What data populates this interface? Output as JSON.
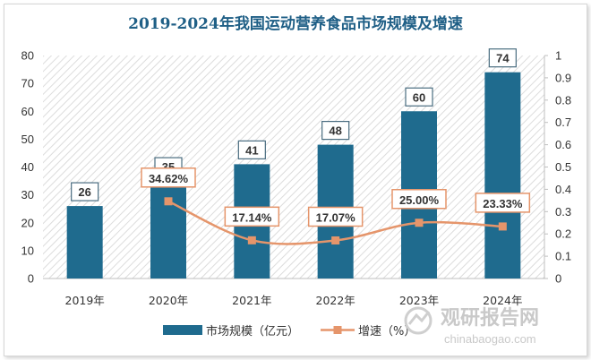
{
  "chart_data": {
    "type": "bar",
    "title": "2019-2024年我国运动营养食品市场规模及增速",
    "categories": [
      "2019年",
      "2020年",
      "2021年",
      "2022年",
      "2023年",
      "2024年"
    ],
    "series": [
      {
        "name": "市场规模（亿元）",
        "type": "bar",
        "axis": "left",
        "values": [
          26,
          35,
          41,
          48,
          60,
          74
        ],
        "labels": [
          "26",
          "35",
          "41",
          "48",
          "60",
          "74"
        ],
        "color": "#1f6b8e"
      },
      {
        "name": "增速（%）",
        "type": "line",
        "axis": "right",
        "values": [
          null,
          0.3462,
          0.1714,
          0.1707,
          0.25,
          0.2333
        ],
        "labels": [
          "",
          "34.62%",
          "17.14%",
          "17.07%",
          "25.00%",
          "23.33%"
        ],
        "color": "#e5956b"
      }
    ],
    "y_left": {
      "min": 0,
      "max": 80,
      "ticks": [
        "0",
        "10",
        "20",
        "30",
        "40",
        "50",
        "60",
        "70",
        "80"
      ]
    },
    "y_right": {
      "min": 0,
      "max": 1,
      "ticks": [
        "0",
        "0.1",
        "0.2",
        "0.3",
        "0.4",
        "0.5",
        "0.6",
        "0.7",
        "0.8",
        "0.9",
        "1"
      ]
    },
    "legend_position": "bottom",
    "grid": false
  },
  "watermark": {
    "cn": "观研报告网",
    "en": "chinabaogao.com"
  }
}
